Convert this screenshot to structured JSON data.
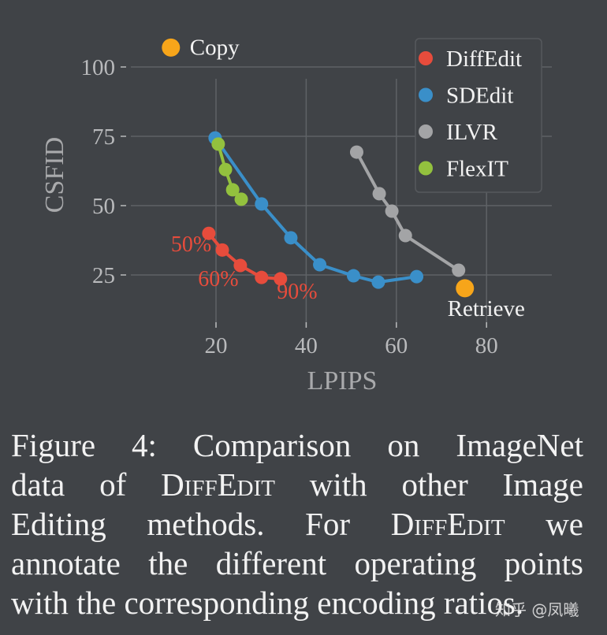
{
  "chart_data": {
    "type": "line",
    "title": "",
    "xlabel": "LPIPS",
    "ylabel": "CSFID",
    "xlim": [
      0,
      93
    ],
    "ylim": [
      10,
      108
    ],
    "xticks": [
      20,
      40,
      60,
      80
    ],
    "yticks": [
      25,
      50,
      75,
      100
    ],
    "grid": true,
    "legend_position": "upper right",
    "legend": [
      "DiffEdit",
      "SDEdit",
      "ILVR",
      "FlexIT"
    ],
    "series": [
      {
        "name": "DiffEdit",
        "color": "#e74c3c",
        "x": [
          18.4,
          21.4,
          25.4,
          30.1,
          34.3
        ],
        "y": [
          40.0,
          34.0,
          28.4,
          24.1,
          23.6
        ],
        "point_labels": [
          {
            "text": "50%",
            "x": 14.5,
            "y": 33.5
          },
          {
            "text": "60%",
            "x": 20.5,
            "y": 21.0
          },
          {
            "text": "90%",
            "x": 38.0,
            "y": 16.5
          }
        ]
      },
      {
        "name": "SDEdit",
        "color": "#3a8fc9",
        "x": [
          19.8,
          30.1,
          36.6,
          43.0,
          50.5,
          56.0,
          64.5
        ],
        "y": [
          74.4,
          50.6,
          38.4,
          28.7,
          24.7,
          22.4,
          24.4
        ]
      },
      {
        "name": "ILVR",
        "color": "#a3a4a6",
        "x": [
          51.2,
          56.2,
          59.0,
          62.0,
          73.8
        ],
        "y": [
          69.3,
          54.3,
          48.0,
          39.2,
          26.7
        ]
      },
      {
        "name": "FlexIT",
        "color": "#93c13e",
        "x": [
          20.5,
          22.1,
          23.7,
          25.6
        ],
        "y": [
          72.2,
          63.0,
          55.7,
          52.3
        ]
      }
    ],
    "annotations": [
      {
        "text": "Copy",
        "x": 10.0,
        "y": 107.0,
        "color": "#f7a51a",
        "marker": "circle"
      },
      {
        "text": "Retrieve",
        "x": 75.2,
        "y": 20.2,
        "color": "#f7a51a",
        "marker": "circle"
      }
    ]
  },
  "figure": {
    "caption_lines": [
      {
        "parts": [
          {
            "t": "Figure 4:  Comparison on ImageNet"
          }
        ]
      },
      {
        "parts": [
          {
            "t": "data of "
          },
          {
            "t": "DiffEdit",
            "sc": true
          },
          {
            "t": " with other Image"
          }
        ]
      },
      {
        "parts": [
          {
            "t": "Editing methods.  For "
          },
          {
            "t": "DiffEdit",
            "sc": true
          },
          {
            "t": " we"
          }
        ]
      },
      {
        "parts": [
          {
            "t": "annotate the different operating points"
          }
        ]
      },
      {
        "parts": [
          {
            "t": "with the corresponding encoding ratios."
          }
        ]
      }
    ],
    "watermark": "知乎 @凤曦"
  },
  "colors": {
    "background": "#404347",
    "grid": "#5f6266",
    "tick_text": "#b9babc",
    "axis_label": "#a9aaac",
    "legend_border": "#56595d",
    "text": "#f2f2f2"
  }
}
